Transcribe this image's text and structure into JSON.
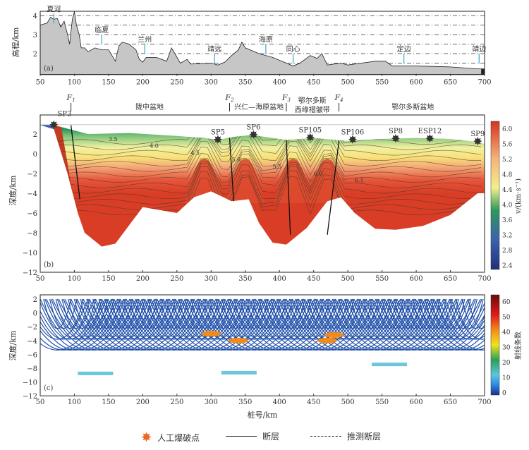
{
  "chart_data": [
    {
      "type": "area",
      "panel_label": "(a)",
      "ylabel": "高程/km",
      "xlim": [
        50,
        700
      ],
      "ylim": [
        0.9,
        4.4
      ],
      "xticks": [
        "50",
        "100",
        "150",
        "200",
        "250",
        "300",
        "350",
        "400",
        "450",
        "500",
        "550",
        "600",
        "650",
        "700"
      ],
      "yticks": [
        "2",
        "3",
        "4"
      ],
      "ref_lines": [
        4,
        3.5,
        3,
        2.5,
        2,
        1.5
      ],
      "profile": [
        [
          50,
          3.5
        ],
        [
          60,
          3.6
        ],
        [
          65,
          3.9
        ],
        [
          70,
          3.8
        ],
        [
          75,
          3.85
        ],
        [
          80,
          3.4
        ],
        [
          85,
          3.7
        ],
        [
          90,
          3.0
        ],
        [
          93,
          2.5
        ],
        [
          97,
          3.8
        ],
        [
          100,
          4.2
        ],
        [
          103,
          3.5
        ],
        [
          107,
          3.0
        ],
        [
          110,
          2.3
        ],
        [
          115,
          2.3
        ],
        [
          120,
          2.1
        ],
        [
          130,
          2.3
        ],
        [
          140,
          2.2
        ],
        [
          150,
          2.2
        ],
        [
          155,
          1.9
        ],
        [
          160,
          1.6
        ],
        [
          165,
          2.4
        ],
        [
          170,
          2.6
        ],
        [
          180,
          2.5
        ],
        [
          190,
          2.2
        ],
        [
          195,
          1.7
        ],
        [
          200,
          1.55
        ],
        [
          205,
          1.8
        ],
        [
          220,
          1.8
        ],
        [
          235,
          1.6
        ],
        [
          242,
          2.3
        ],
        [
          247,
          2.0
        ],
        [
          255,
          1.5
        ],
        [
          265,
          1.7
        ],
        [
          270,
          1.45
        ],
        [
          300,
          1.5
        ],
        [
          310,
          1.4
        ],
        [
          320,
          1.55
        ],
        [
          330,
          1.9
        ],
        [
          340,
          2.2
        ],
        [
          345,
          2.6
        ],
        [
          350,
          2.3
        ],
        [
          370,
          2.0
        ],
        [
          390,
          1.8
        ],
        [
          410,
          1.5
        ],
        [
          420,
          1.35
        ],
        [
          430,
          1.5
        ],
        [
          445,
          1.9
        ],
        [
          455,
          1.75
        ],
        [
          462,
          2.0
        ],
        [
          470,
          1.4
        ],
        [
          490,
          1.5
        ],
        [
          500,
          1.4
        ],
        [
          520,
          1.5
        ],
        [
          540,
          1.6
        ],
        [
          555,
          1.6
        ],
        [
          565,
          1.35
        ],
        [
          600,
          1.35
        ],
        [
          650,
          1.3
        ],
        [
          690,
          1.2
        ],
        [
          700,
          1.2
        ]
      ],
      "towns": [
        {
          "name": "夏河",
          "x": 70,
          "top": 4.1
        },
        {
          "name": "临夏",
          "x": 140,
          "top": 3.0
        },
        {
          "name": "兰州",
          "x": 203,
          "top": 2.5
        },
        {
          "name": "靖远",
          "x": 305,
          "top": 2.0
        },
        {
          "name": "海原",
          "x": 380,
          "top": 2.5
        },
        {
          "name": "同心",
          "x": 420,
          "top": 2.0
        },
        {
          "name": "定边",
          "x": 582,
          "top": 2.0
        },
        {
          "name": "靖边",
          "x": 692,
          "top": 2.0
        }
      ]
    },
    {
      "type": "heatmap",
      "panel_label": "(b)",
      "ylabel": "深度/km",
      "xlim": [
        50,
        700
      ],
      "ylim": [
        -12,
        4
      ],
      "xticks": [
        "50",
        "100",
        "150",
        "200",
        "250",
        "300",
        "350",
        "400",
        "450",
        "500",
        "550",
        "600",
        "650",
        "700"
      ],
      "yticks": [
        "2",
        "0",
        "−2",
        "−4",
        "−6",
        "−8",
        "−10",
        "−12"
      ],
      "colorbar": {
        "label": "v/(km·s⁻¹)",
        "ticks": [
          "6.0",
          "5.6",
          "5.2",
          "4.8",
          "4.4",
          "4.0",
          "3.6",
          "3.2",
          "2.8",
          "2.4"
        ],
        "range": [
          2.4,
          6.2
        ]
      },
      "contour_labels": [
        "3.5",
        "4.0",
        "4.5",
        "5.0",
        "5.5",
        "6.0",
        "6.1"
      ],
      "faults": [
        {
          "name": "F",
          "sub": "1",
          "x": 95
        },
        {
          "name": "F",
          "sub": "2",
          "x": 327
        },
        {
          "name": "F",
          "sub": "3",
          "x": 410
        },
        {
          "name": "F",
          "sub": "4",
          "x": 487
        }
      ],
      "units": [
        {
          "name": "陇中盆地",
          "x": 210
        },
        {
          "name": "兴仁—海原盆地",
          "x": 370
        },
        {
          "name": "鄂尔多斯",
          "name2": "西缘褶皱带",
          "x": 448
        },
        {
          "name": "鄂尔多斯盆地",
          "x": 595
        }
      ],
      "shot_points": [
        {
          "name": "SP3",
          "x": 70,
          "elev": 2.9
        },
        {
          "name": "SP5",
          "x": 310,
          "elev": 1.4
        },
        {
          "name": "SP6",
          "x": 362,
          "elev": 1.9
        },
        {
          "name": "SP105",
          "x": 445,
          "elev": 1.6
        },
        {
          "name": "SP106",
          "x": 507,
          "elev": 1.4
        },
        {
          "name": "SP8",
          "x": 570,
          "elev": 1.5
        },
        {
          "name": "ESP12",
          "x": 620,
          "elev": 1.5
        },
        {
          "name": "SP9",
          "x": 690,
          "elev": 1.2
        }
      ],
      "surface": [
        [
          50,
          2.9
        ],
        [
          70,
          2.9
        ],
        [
          120,
          2.0
        ],
        [
          180,
          2.1
        ],
        [
          250,
          1.8
        ],
        [
          290,
          1.6
        ],
        [
          310,
          1.4
        ],
        [
          330,
          1.7
        ],
        [
          360,
          1.9
        ],
        [
          410,
          1.4
        ],
        [
          450,
          1.6
        ],
        [
          500,
          1.3
        ],
        [
          550,
          1.5
        ],
        [
          600,
          1.6
        ],
        [
          650,
          1.5
        ],
        [
          690,
          1.2
        ],
        [
          700,
          1.0
        ]
      ],
      "model_bottom": [
        [
          700,
          -4
        ],
        [
          690,
          -4
        ],
        [
          650,
          -6.2
        ],
        [
          610,
          -7.3
        ],
        [
          570,
          -7.7
        ],
        [
          540,
          -7.6
        ],
        [
          510,
          -6
        ],
        [
          490,
          -4.4
        ],
        [
          470,
          -4.8
        ],
        [
          440,
          -7.5
        ],
        [
          410,
          -9.2
        ],
        [
          390,
          -9
        ],
        [
          370,
          -7
        ],
        [
          355,
          -4.6
        ],
        [
          330,
          -4.8
        ],
        [
          300,
          -3.8
        ],
        [
          275,
          -4.4
        ],
        [
          250,
          -6
        ],
        [
          200,
          -5.4
        ],
        [
          160,
          -9.1
        ],
        [
          140,
          -9.4
        ],
        [
          115,
          -8
        ],
        [
          105,
          -6
        ],
        [
          90,
          -2
        ],
        [
          70,
          2.5
        ],
        [
          50,
          2.9
        ]
      ],
      "basement_highs": [
        290,
        350,
        420,
        470
      ]
    },
    {
      "type": "heatmap",
      "panel_label": "(c)",
      "ylabel": "深度/km",
      "xlabel": "桩号/km",
      "xlim": [
        50,
        700
      ],
      "ylim": [
        -12,
        2
      ],
      "xticks": [
        "50",
        "100",
        "150",
        "200",
        "250",
        "300",
        "350",
        "400",
        "450",
        "500",
        "550",
        "600",
        "650",
        "700"
      ],
      "yticks": [
        "2",
        "0",
        "−2",
        "−4",
        "−6",
        "−8",
        "−10",
        "−12"
      ],
      "colorbar": {
        "label": "射线条数",
        "ticks": [
          "60",
          "50",
          "40",
          "30",
          "20",
          "10",
          "0"
        ],
        "range": [
          0,
          65
        ]
      }
    }
  ],
  "legend": {
    "shot": "人工爆破点",
    "fault": "断层",
    "inferred": "推测断层"
  },
  "colors": {
    "shot": "#f26522",
    "topo": "#c0c0c0",
    "ray": "#1f4fa8"
  }
}
